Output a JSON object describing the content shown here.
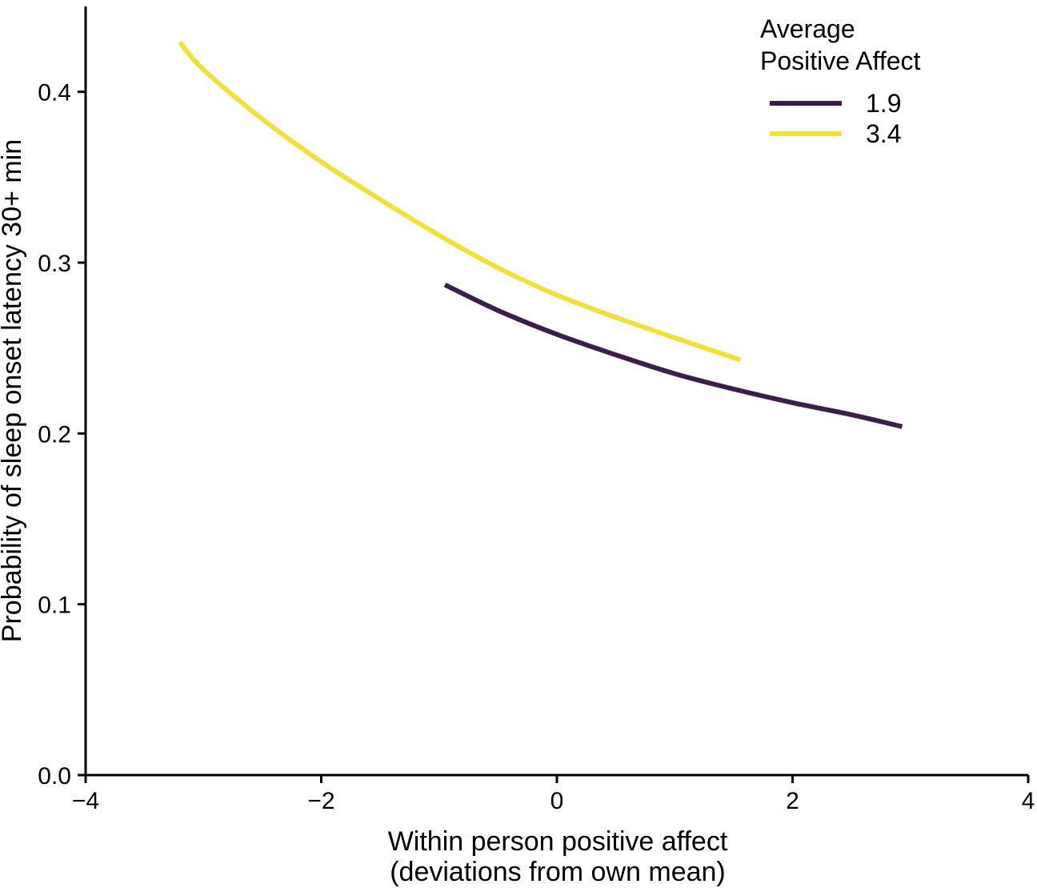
{
  "chart_data": {
    "type": "line",
    "title": "",
    "xlabel_line1": "Within person positive affect",
    "xlabel_line2": "(deviations from own mean)",
    "ylabel": "Probability of sleep onset latency 30+ min",
    "xlim": [
      -4,
      4
    ],
    "ylim": [
      0,
      0.45
    ],
    "x_ticks": [
      -4,
      -2,
      0,
      2,
      4
    ],
    "x_tick_labels": [
      "−4",
      "−2",
      "0",
      "2",
      "4"
    ],
    "y_ticks": [
      0.0,
      0.1,
      0.2,
      0.3,
      0.4
    ],
    "y_tick_labels": [
      "0.0",
      "0.1",
      "0.2",
      "0.3",
      "0.4"
    ],
    "grid": false,
    "legend": {
      "title_line1": "Average",
      "title_line2": "Positive Affect",
      "placement": "top-right"
    },
    "series": [
      {
        "name": "1.9",
        "color": "#3b1f4a",
        "x": [
          -0.95,
          -0.5,
          0.0,
          0.5,
          1.0,
          1.5,
          2.0,
          2.5,
          2.93
        ],
        "y": [
          0.287,
          0.272,
          0.258,
          0.246,
          0.235,
          0.226,
          0.218,
          0.211,
          0.204
        ]
      },
      {
        "name": "3.4",
        "color": "#f1e03b",
        "x": [
          -3.2,
          -3.0,
          -2.5,
          -2.0,
          -1.5,
          -1.0,
          -0.5,
          0.0,
          0.5,
          1.0,
          1.56
        ],
        "y": [
          0.429,
          0.413,
          0.384,
          0.359,
          0.337,
          0.316,
          0.297,
          0.281,
          0.268,
          0.256,
          0.243
        ]
      }
    ]
  }
}
